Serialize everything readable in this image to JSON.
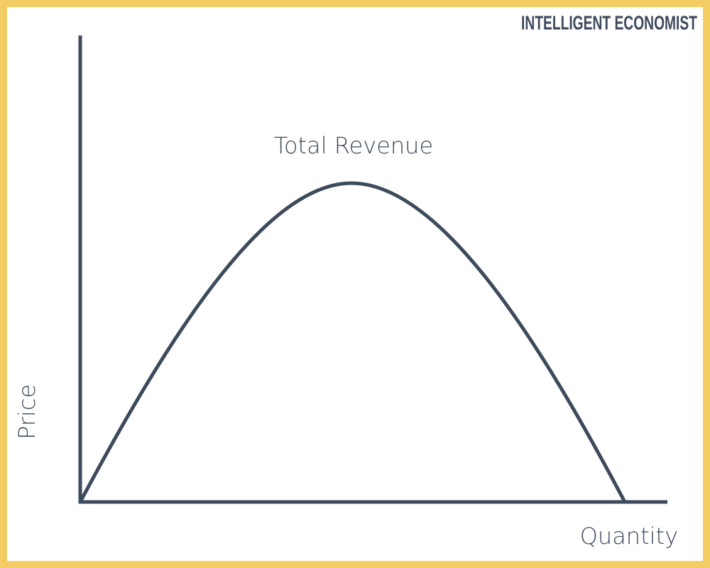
{
  "brand": "INTELLIGENT ECONOMIST",
  "curve_label": "Total Revenue",
  "y_axis_label": "Price",
  "x_axis_label": "Quantity"
}
